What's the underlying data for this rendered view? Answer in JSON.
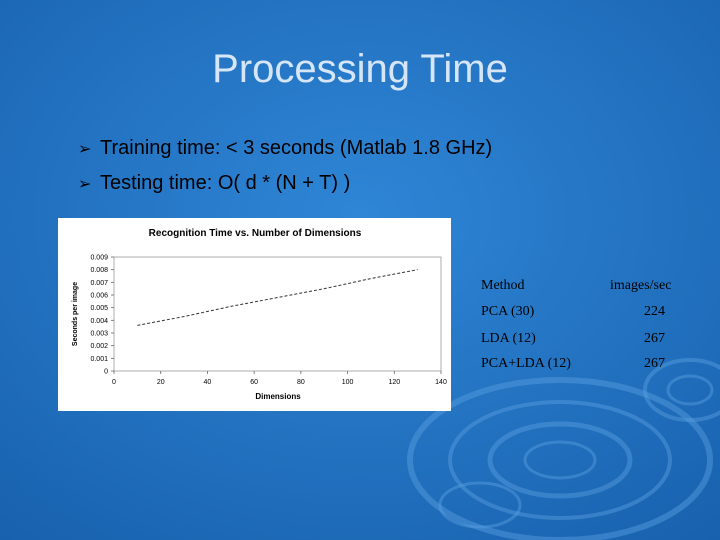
{
  "title": "Processing Time",
  "bullets": [
    "Training time: < 3 seconds (Matlab 1.8 GHz)",
    "Testing time: O( d * (N + T) )"
  ],
  "chart_data": {
    "type": "line",
    "title": "Recognition Time vs. Number of Dimensions",
    "x_label": "Dimensions",
    "y_label": "Seconds per image",
    "x": [
      10,
      30,
      50,
      70,
      90,
      110,
      130
    ],
    "values": [
      0.0036,
      0.0043,
      0.0051,
      0.0058,
      0.0065,
      0.0073,
      0.008
    ],
    "color": "#333333",
    "xlim": [
      0,
      140
    ],
    "xticks": [
      0,
      20,
      40,
      60,
      80,
      100,
      120,
      140
    ],
    "ylim": [
      0,
      0.009
    ],
    "yticks": [
      0,
      0.001,
      0.002,
      0.003,
      0.004,
      0.005,
      0.006,
      0.007,
      0.008,
      0.009
    ]
  },
  "table": {
    "header": [
      "Method",
      "images/sec"
    ],
    "rows": [
      [
        "PCA (30)",
        224
      ],
      [
        "LDA (12)",
        267
      ],
      [
        "PCA+LDA (12)",
        267
      ]
    ]
  }
}
